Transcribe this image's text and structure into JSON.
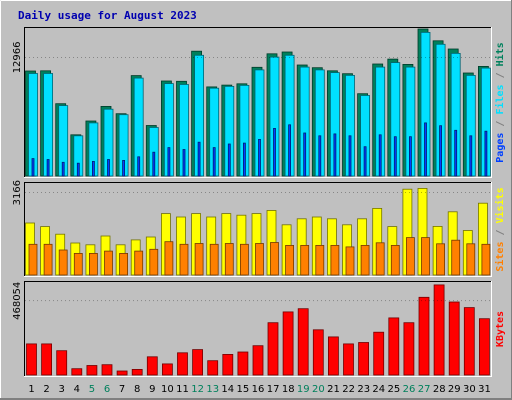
{
  "title": "Daily usage for August 2023",
  "colors": {
    "hits": "#00805c",
    "files": "#00e0ff",
    "pages": "#0040ff",
    "visits": "#ffff00",
    "sites": "#ff8000",
    "kbytes": "#ff0000",
    "weekend_label": "#00805c",
    "weekday_label": "#000000",
    "separator": "#808080"
  },
  "chart_data": [
    {
      "type": "bar",
      "panel": "top",
      "y_tick_label": "12966",
      "y_tick_value": 12966,
      "ylim": [
        0,
        16070
      ],
      "legend": [
        {
          "text": "Pages",
          "color_key": "pages"
        },
        {
          "text": " / ",
          "color_key": "separator"
        },
        {
          "text": "Files",
          "color_key": "files"
        },
        {
          "text": " / ",
          "color_key": "separator"
        },
        {
          "text": "Hits",
          "color_key": "hits"
        }
      ],
      "categories": [
        "1",
        "2",
        "3",
        "4",
        "5",
        "6",
        "7",
        "8",
        "9",
        "10",
        "11",
        "12",
        "13",
        "14",
        "15",
        "16",
        "17",
        "18",
        "19",
        "20",
        "21",
        "22",
        "23",
        "24",
        "25",
        "26",
        "27",
        "28",
        "29",
        "30",
        "31"
      ],
      "series": [
        {
          "name": "Hits",
          "color_key": "hits",
          "values": [
            11480,
            11500,
            7900,
            4500,
            6010,
            7610,
            6810,
            10980,
            5520,
            10390,
            10350,
            13640,
            9740,
            9940,
            10080,
            11880,
            13360,
            13560,
            12130,
            11840,
            11500,
            11180,
            9000,
            12240,
            12780,
            12200,
            16070,
            14780,
            13880,
            11260,
            11980
          ]
        },
        {
          "name": "Files",
          "color_key": "files",
          "values": [
            11200,
            11200,
            7700,
            4400,
            5800,
            7300,
            6700,
            10700,
            5300,
            10100,
            10000,
            13200,
            9600,
            9800,
            9900,
            11600,
            13000,
            13200,
            11900,
            11600,
            11300,
            11000,
            8800,
            11900,
            12400,
            11900,
            15700,
            14400,
            13400,
            11000,
            11800
          ]
        },
        {
          "name": "Pages",
          "color_key": "pages",
          "values": [
            1900,
            1800,
            1500,
            1400,
            1600,
            1800,
            1700,
            2100,
            2600,
            3100,
            2900,
            3700,
            3100,
            3500,
            3600,
            4000,
            5200,
            5600,
            4700,
            4400,
            4600,
            4400,
            3200,
            4500,
            4300,
            4300,
            5800,
            5500,
            5000,
            4400,
            4900
          ]
        }
      ]
    },
    {
      "type": "bar",
      "panel": "middle",
      "y_tick_label": "3166",
      "y_tick_value": 3166,
      "ylim": [
        0,
        3500
      ],
      "legend": [
        {
          "text": "Sites",
          "color_key": "sites"
        },
        {
          "text": " / ",
          "color_key": "separator"
        },
        {
          "text": "Visits",
          "color_key": "visits"
        }
      ],
      "categories": [
        "1",
        "2",
        "3",
        "4",
        "5",
        "6",
        "7",
        "8",
        "9",
        "10",
        "11",
        "12",
        "13",
        "14",
        "15",
        "16",
        "17",
        "18",
        "19",
        "20",
        "21",
        "22",
        "23",
        "24",
        "25",
        "26",
        "27",
        "28",
        "29",
        "30",
        "31"
      ],
      "series": [
        {
          "name": "Visits",
          "color_key": "visits",
          "values": [
            2000,
            1860,
            1570,
            1230,
            1160,
            1500,
            1160,
            1350,
            1460,
            2360,
            2230,
            2360,
            2230,
            2360,
            2300,
            2360,
            2480,
            1930,
            2160,
            2230,
            2160,
            1930,
            2160,
            2560,
            1860,
            3300,
            3330,
            1870,
            2430,
            1710,
            2760
          ]
        },
        {
          "name": "Sites",
          "color_key": "sites",
          "values": [
            1180,
            1180,
            960,
            830,
            830,
            920,
            830,
            920,
            990,
            1280,
            1180,
            1210,
            1180,
            1210,
            1180,
            1210,
            1250,
            1140,
            1140,
            1140,
            1140,
            1080,
            1140,
            1240,
            1140,
            1440,
            1440,
            1200,
            1340,
            1200,
            1180
          ]
        }
      ]
    },
    {
      "type": "bar",
      "panel": "bottom",
      "y_tick_label": "468054",
      "y_tick_value": 468054,
      "ylim": [
        0,
        580000
      ],
      "legend": [
        {
          "text": "KBytes",
          "color_key": "kbytes"
        }
      ],
      "categories": [
        "1",
        "2",
        "3",
        "4",
        "5",
        "6",
        "7",
        "8",
        "9",
        "10",
        "11",
        "12",
        "13",
        "14",
        "15",
        "16",
        "17",
        "18",
        "19",
        "20",
        "21",
        "22",
        "23",
        "24",
        "25",
        "26",
        "27",
        "28",
        "29",
        "30",
        "31"
      ],
      "series": [
        {
          "name": "KBytes",
          "color_key": "kbytes",
          "values": [
            196000,
            196000,
            153000,
            40000,
            60000,
            65000,
            25000,
            35000,
            115000,
            70000,
            140000,
            160000,
            90000,
            130000,
            145000,
            185000,
            330000,
            398000,
            418000,
            285000,
            240000,
            196000,
            205000,
            270000,
            360000,
            330000,
            490000,
            568000,
            460000,
            425000,
            355000
          ]
        }
      ]
    }
  ],
  "x_axis": {
    "labels": [
      "1",
      "2",
      "3",
      "4",
      "5",
      "6",
      "7",
      "8",
      "9",
      "10",
      "11",
      "12",
      "13",
      "14",
      "15",
      "16",
      "17",
      "18",
      "19",
      "20",
      "21",
      "22",
      "23",
      "24",
      "25",
      "26",
      "27",
      "28",
      "29",
      "30",
      "31"
    ],
    "weekend": [
      5,
      6,
      12,
      13,
      19,
      20,
      26,
      27
    ]
  }
}
